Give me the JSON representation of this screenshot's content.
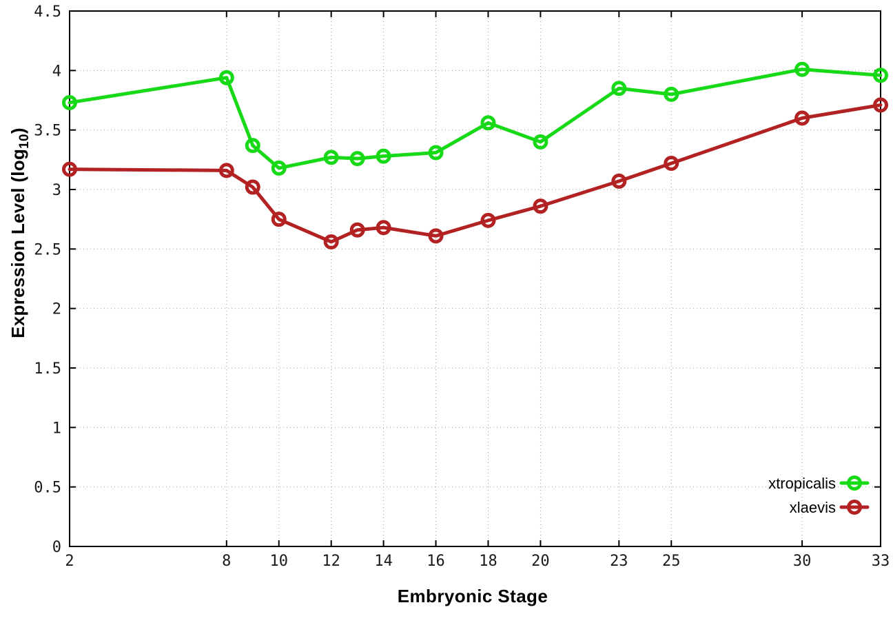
{
  "chart_data": {
    "type": "line",
    "title": "",
    "xlabel": "Embryonic Stage",
    "ylabel_main": "Expression Level (log",
    "ylabel_sub": "10",
    "ylabel_suffix": ")",
    "xlim": [
      2,
      33
    ],
    "ylim": [
      0,
      4.5
    ],
    "x_ticks": [
      2,
      8,
      10,
      12,
      14,
      16,
      18,
      20,
      23,
      25,
      30,
      33
    ],
    "y_ticks": [
      0,
      0.5,
      1,
      1.5,
      2,
      2.5,
      3,
      3.5,
      4,
      4.5
    ],
    "grid": true,
    "legend_position": "bottom-right",
    "x": [
      2,
      8,
      9,
      10,
      12,
      13,
      14,
      16,
      18,
      20,
      23,
      25,
      30,
      33
    ],
    "series": [
      {
        "name": "xtropicalis",
        "color": "#17d917",
        "values": [
          3.73,
          3.94,
          3.37,
          3.18,
          3.27,
          3.26,
          3.28,
          3.31,
          3.56,
          3.4,
          3.85,
          3.8,
          4.01,
          3.96
        ]
      },
      {
        "name": "xlaevis",
        "color": "#b22222",
        "values": [
          3.17,
          3.16,
          3.02,
          2.75,
          2.56,
          2.66,
          2.68,
          2.61,
          2.74,
          2.86,
          3.07,
          3.22,
          3.6,
          3.71
        ]
      }
    ],
    "colors": {
      "grid": "#9e9e9e",
      "axis": "#000000",
      "tick_label": "#1a1a1a",
      "background": "#ffffff"
    }
  }
}
